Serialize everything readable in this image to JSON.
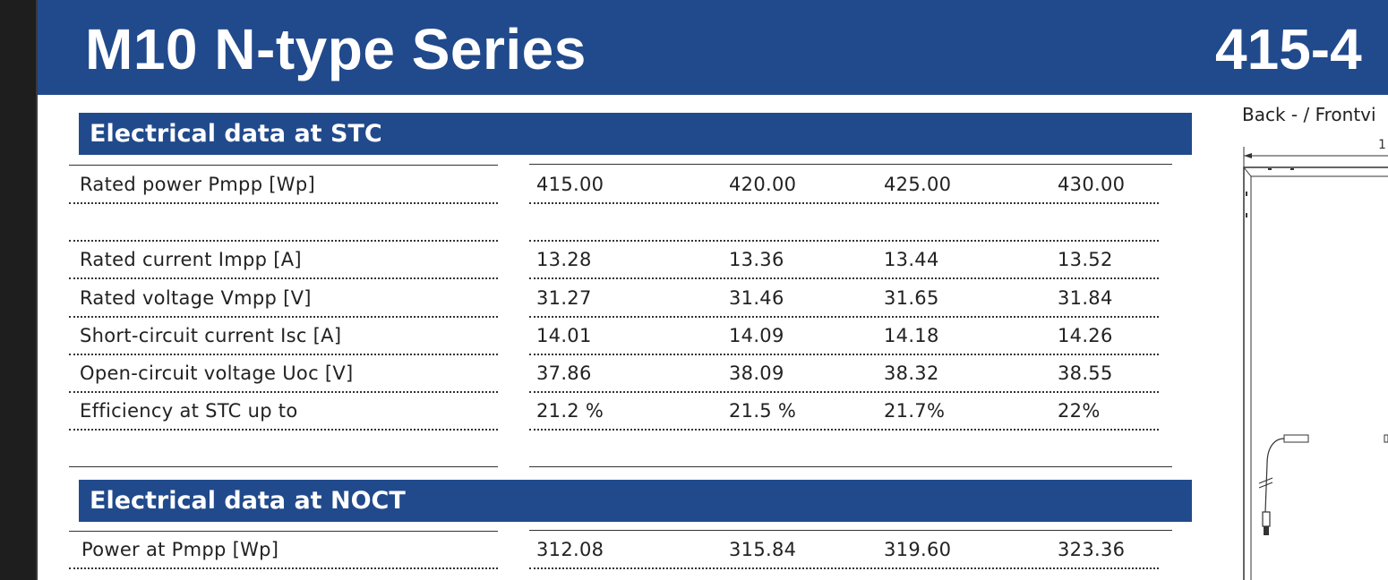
{
  "header": {
    "title": "M10 N-type Series",
    "power_range": "415-4"
  },
  "drawing": {
    "view_label": "Back - / Frontvi",
    "dimension_text": "1"
  },
  "stc": {
    "title": "Electrical data at STC",
    "rows": [
      {
        "label": "Rated power Pmpp [Wp]",
        "values": [
          "415.00",
          "420.00",
          "425.00",
          "430.00"
        ]
      },
      {
        "label": "",
        "values": [
          "",
          "",
          "",
          ""
        ]
      },
      {
        "label": "Rated current Impp [A]",
        "values": [
          "13.28",
          "13.36",
          "13.44",
          "13.52"
        ]
      },
      {
        "label": "Rated voltage Vmpp [V]",
        "values": [
          "31.27",
          "31.46",
          "31.65",
          "31.84"
        ]
      },
      {
        "label": "Short-circuit current Isc [A]",
        "values": [
          "14.01",
          "14.09",
          "14.18",
          "14.26"
        ]
      },
      {
        "label": "Open-circuit voltage Uoc [V]",
        "values": [
          "37.86",
          "38.09",
          "38.32",
          "38.55"
        ]
      },
      {
        "label": "Efficiency at STC up to",
        "values": [
          "21.2 %",
          "21.5 %",
          "21.7%",
          "22%"
        ]
      }
    ]
  },
  "noct": {
    "title": "Electrical data at NOCT",
    "rows": [
      {
        "label": "Power at Pmpp [Wp]",
        "values": [
          "312.08",
          "315.84",
          "319.60",
          "323.36"
        ]
      }
    ]
  }
}
